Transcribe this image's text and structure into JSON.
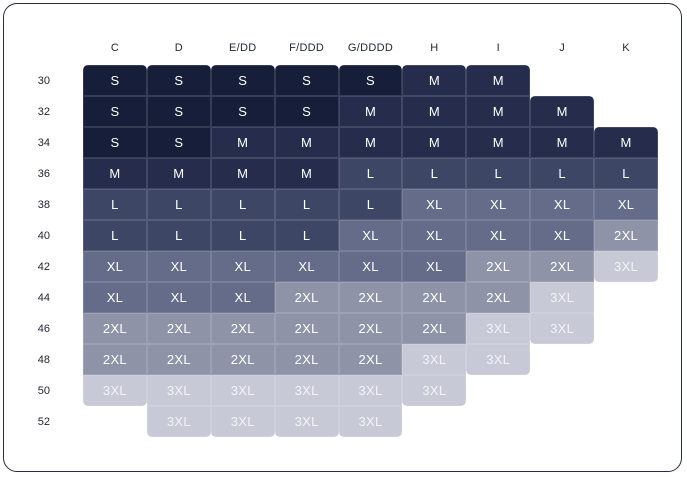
{
  "page": {
    "background": "#ffffff",
    "card_border_color": "#272d42"
  },
  "chart_data": {
    "type": "heatmap",
    "title": "",
    "xlabel": "",
    "ylabel": "",
    "grid": false,
    "legend": "none",
    "columns": [
      "C",
      "D",
      "E/DD",
      "F/DDD",
      "G/DDDD",
      "H",
      "I",
      "J",
      "K"
    ],
    "rows": [
      "30",
      "32",
      "34",
      "36",
      "38",
      "40",
      "42",
      "44",
      "46",
      "48",
      "50",
      "52"
    ],
    "series": [
      {
        "name": "C",
        "values": [
          "S",
          "S",
          "S",
          "M",
          "L",
          "L",
          "XL",
          "XL",
          "2XL",
          "2XL",
          "3XL",
          null
        ]
      },
      {
        "name": "D",
        "values": [
          "S",
          "S",
          "S",
          "M",
          "L",
          "L",
          "XL",
          "XL",
          "2XL",
          "2XL",
          "3XL",
          "3XL"
        ]
      },
      {
        "name": "E/DD",
        "values": [
          "S",
          "S",
          "M",
          "M",
          "L",
          "L",
          "XL",
          "XL",
          "2XL",
          "2XL",
          "3XL",
          "3XL"
        ]
      },
      {
        "name": "F/DDD",
        "values": [
          "S",
          "S",
          "M",
          "M",
          "L",
          "L",
          "XL",
          "2XL",
          "2XL",
          "2XL",
          "3XL",
          "3XL"
        ]
      },
      {
        "name": "G/DDDD",
        "values": [
          "S",
          "M",
          "M",
          "L",
          "L",
          "XL",
          "XL",
          "2XL",
          "2XL",
          "2XL",
          "3XL",
          "3XL"
        ]
      },
      {
        "name": "H",
        "values": [
          "M",
          "M",
          "M",
          "L",
          "XL",
          "XL",
          "XL",
          "2XL",
          "2XL",
          "3XL",
          "3XL",
          null
        ]
      },
      {
        "name": "I",
        "values": [
          "M",
          "M",
          "M",
          "L",
          "XL",
          "XL",
          "2XL",
          "2XL",
          "3XL",
          "3XL",
          null,
          null
        ]
      },
      {
        "name": "J",
        "values": [
          null,
          "M",
          "M",
          "L",
          "XL",
          "XL",
          "2XL",
          "3XL",
          "3XL",
          null,
          null,
          null
        ]
      },
      {
        "name": "K",
        "values": [
          null,
          null,
          "M",
          "L",
          "XL",
          "2XL",
          "3XL",
          null,
          null,
          null,
          null,
          null
        ]
      }
    ],
    "size_scale": [
      "S",
      "M",
      "L",
      "XL",
      "2XL",
      "3XL"
    ],
    "size_colors": {
      "S": "#171e3a",
      "M": "#262d4c",
      "L": "#3e4665",
      "XL": "#646c8a",
      "2XL": "#8e93a8",
      "3XL": "#c7cad6"
    },
    "size_text_colors": {
      "default": "#ffffff",
      "3XL": "rgba(255,255,255,0.78)"
    }
  }
}
